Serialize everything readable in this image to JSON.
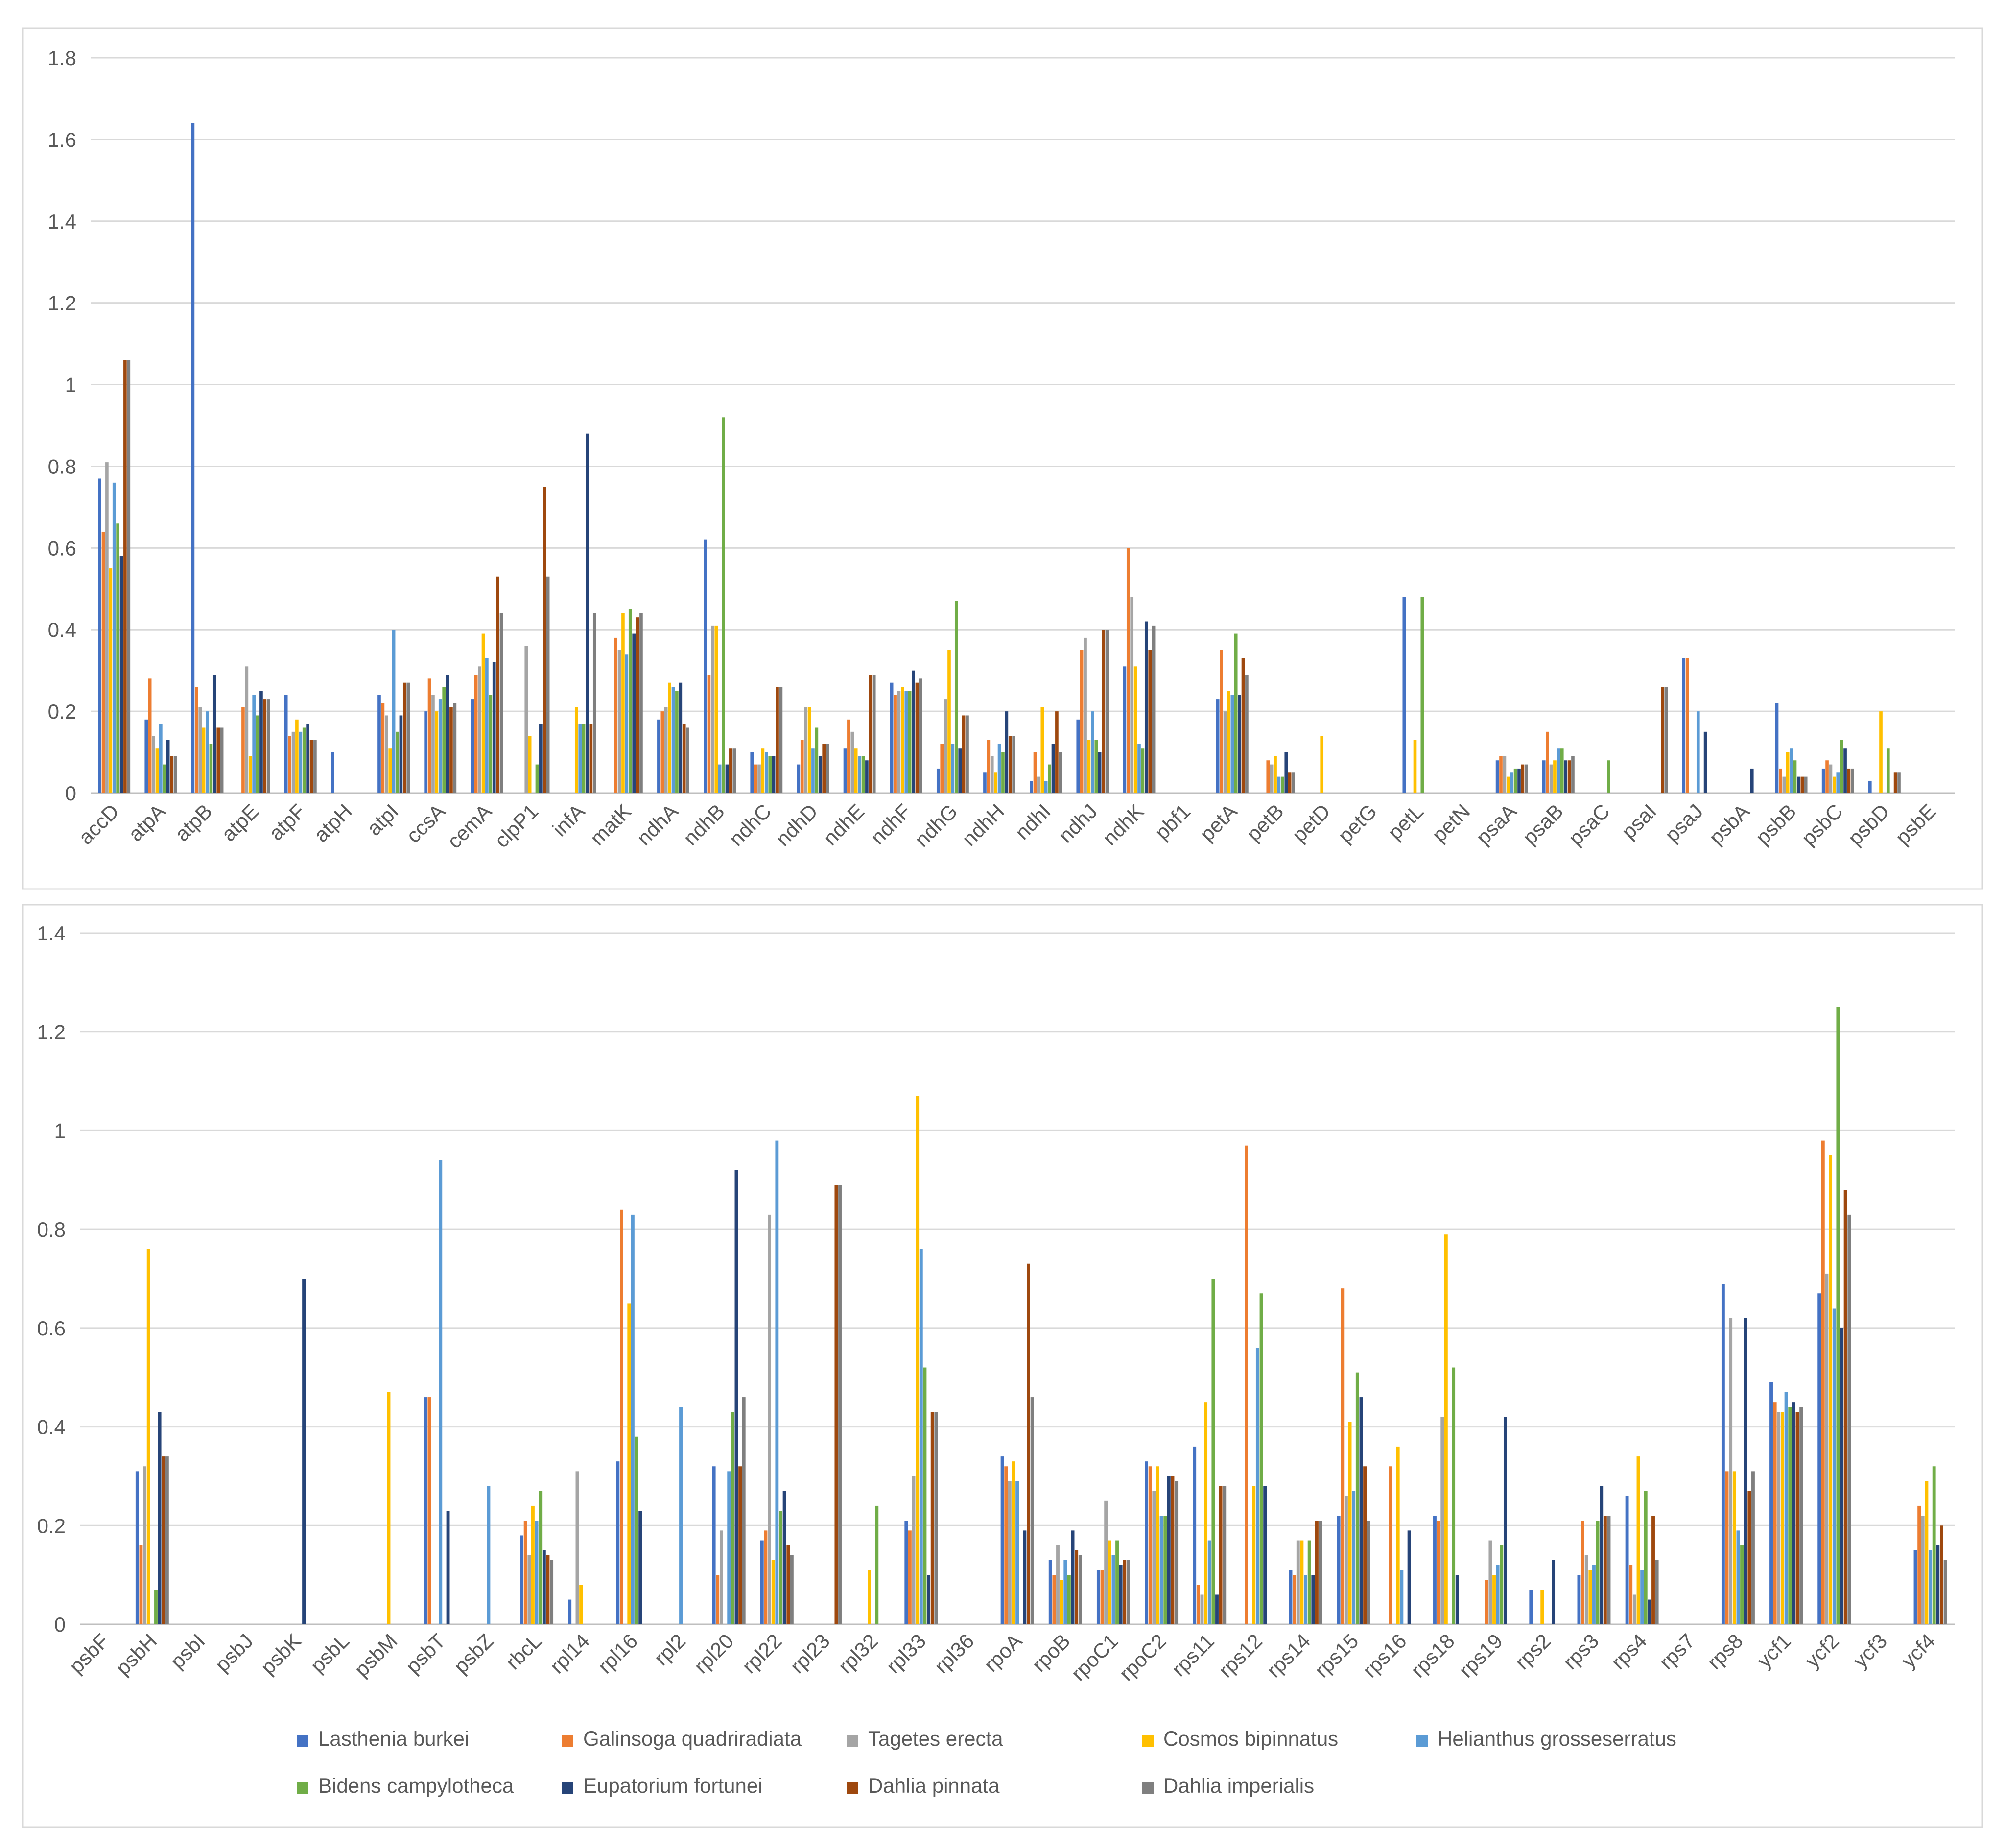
{
  "chart_data": [
    {
      "type": "bar",
      "ylim": [
        0,
        1.8
      ],
      "yticks": [
        0,
        0.2,
        0.4,
        0.6,
        0.8,
        1,
        1.2,
        1.4,
        1.6,
        1.8
      ],
      "ytick_labels": [
        "0",
        "0.2",
        "0.4",
        "0.6",
        "0.8",
        "1",
        "1.2",
        "1.4",
        "1.6",
        "1.8"
      ],
      "categories": [
        "accD",
        "atpA",
        "atpB",
        "atpE",
        "atpF",
        "atpH",
        "atpI",
        "ccsA",
        "cemA",
        "clpP1",
        "infA",
        "matK",
        "ndhA",
        "ndhB",
        "ndhC",
        "ndhD",
        "ndhE",
        "ndhF",
        "ndhG",
        "ndhH",
        "ndhI",
        "ndhJ",
        "ndhK",
        "pbf1",
        "petA",
        "petB",
        "petD",
        "petG",
        "petL",
        "petN",
        "psaA",
        "psaB",
        "psaC",
        "psaI",
        "psaJ",
        "psbA",
        "psbB",
        "psbC",
        "psbD",
        "psbE"
      ],
      "series": [
        {
          "name": "Lasthenia burkei",
          "values": [
            0.77,
            0.18,
            1.64,
            0,
            0.24,
            0.1,
            0.24,
            0.2,
            0.23,
            0,
            0,
            0,
            0.18,
            0.62,
            0.1,
            0.07,
            0.11,
            0.27,
            0.06,
            0.05,
            0.03,
            0.18,
            0.31,
            0,
            0.23,
            0,
            0,
            0,
            0.48,
            0,
            0.08,
            0.08,
            0,
            0,
            0.33,
            0,
            0.22,
            0.06,
            0.03,
            0
          ]
        },
        {
          "name": "Galinsoga quadriradiata",
          "values": [
            0.64,
            0.28,
            0.26,
            0.21,
            0.14,
            0,
            0.22,
            0.28,
            0.29,
            0,
            0,
            0.38,
            0.2,
            0.29,
            0.07,
            0.13,
            0.18,
            0.24,
            0.12,
            0.13,
            0.1,
            0.35,
            0.6,
            0,
            0.35,
            0.08,
            0,
            0,
            0,
            0,
            0.09,
            0.15,
            0,
            0,
            0.33,
            0,
            0.06,
            0.08,
            0,
            0
          ]
        },
        {
          "name": "Tagetes erecta",
          "values": [
            0.81,
            0.14,
            0.21,
            0.31,
            0.15,
            0,
            0.19,
            0.24,
            0.31,
            0.36,
            0,
            0.35,
            0.21,
            0.41,
            0.07,
            0.21,
            0.15,
            0.25,
            0.23,
            0.09,
            0.04,
            0.38,
            0.48,
            0,
            0.2,
            0.07,
            0,
            0,
            0,
            0,
            0.09,
            0.07,
            0,
            0,
            0,
            0,
            0.04,
            0.07,
            0,
            0
          ]
        },
        {
          "name": "Cosmos bipinnatus",
          "values": [
            0.55,
            0.11,
            0.16,
            0.09,
            0.18,
            0,
            0.11,
            0.2,
            0.39,
            0.14,
            0.21,
            0.44,
            0.27,
            0.41,
            0.11,
            0.21,
            0.11,
            0.26,
            0.35,
            0.05,
            0.21,
            0.13,
            0.31,
            0,
            0.25,
            0.09,
            0.14,
            0,
            0.13,
            0,
            0.04,
            0.08,
            0,
            0,
            0,
            0,
            0.1,
            0.04,
            0.2,
            0
          ]
        },
        {
          "name": "Helianthus grosseserratus",
          "values": [
            0.76,
            0.17,
            0.2,
            0.24,
            0.15,
            0,
            0.4,
            0.23,
            0.33,
            0,
            0.17,
            0.34,
            0.26,
            0.07,
            0.1,
            0.11,
            0.09,
            0.25,
            0.12,
            0.12,
            0.03,
            0.2,
            0.12,
            0,
            0.24,
            0.04,
            0,
            0,
            0,
            0,
            0.05,
            0.11,
            0,
            0,
            0.2,
            0,
            0.11,
            0.05,
            0,
            0
          ]
        },
        {
          "name": "Bidens campylotheca",
          "values": [
            0.66,
            0.07,
            0.12,
            0.19,
            0.16,
            0,
            0.15,
            0.26,
            0.24,
            0.07,
            0.17,
            0.45,
            0.25,
            0.92,
            0.09,
            0.16,
            0.09,
            0.25,
            0.47,
            0.1,
            0.07,
            0.13,
            0.11,
            0,
            0.39,
            0.04,
            0,
            0,
            0.48,
            0,
            0.06,
            0.11,
            0.08,
            0,
            0,
            0,
            0.08,
            0.13,
            0.11,
            0
          ]
        },
        {
          "name": "Eupatorium fortunei",
          "values": [
            0.58,
            0.13,
            0.29,
            0.25,
            0.17,
            0,
            0.19,
            0.29,
            0.32,
            0.17,
            0.88,
            0.39,
            0.27,
            0.07,
            0.09,
            0.09,
            0.08,
            0.3,
            0.11,
            0.2,
            0.12,
            0.1,
            0.42,
            0,
            0.24,
            0.1,
            0,
            0,
            0,
            0,
            0.06,
            0.08,
            0,
            0,
            0.15,
            0.06,
            0.04,
            0.11,
            0,
            0
          ]
        },
        {
          "name": "Dahlia pinnata",
          "values": [
            1.06,
            0.09,
            0.16,
            0.23,
            0.13,
            0,
            0.27,
            0.21,
            0.53,
            0.75,
            0.17,
            0.43,
            0.17,
            0.11,
            0.26,
            0.12,
            0.29,
            0.27,
            0.19,
            0.14,
            0.2,
            0.4,
            0.35,
            0,
            0.33,
            0.05,
            0,
            0,
            0,
            0,
            0.07,
            0.08,
            0,
            0.26,
            0,
            0,
            0.04,
            0.06,
            0.05,
            0
          ]
        },
        {
          "name": "Dahlia imperialis",
          "values": [
            1.06,
            0.09,
            0.16,
            0.23,
            0.13,
            0,
            0.27,
            0.22,
            0.44,
            0.53,
            0.44,
            0.44,
            0.16,
            0.11,
            0.26,
            0.12,
            0.29,
            0.28,
            0.19,
            0.14,
            0.1,
            0.4,
            0.41,
            0,
            0.29,
            0.05,
            0,
            0,
            0,
            0,
            0.07,
            0.09,
            0,
            0.26,
            0,
            0,
            0.04,
            0.06,
            0.05,
            0
          ]
        }
      ]
    },
    {
      "type": "bar",
      "ylim": [
        0,
        1.4
      ],
      "yticks": [
        0,
        0.2,
        0.4,
        0.6,
        0.8,
        1,
        1.2,
        1.4
      ],
      "ytick_labels": [
        "0",
        "0.2",
        "0.4",
        "0.6",
        "0.8",
        "1",
        "1.2",
        "1.4"
      ],
      "categories": [
        "psbF",
        "psbH",
        "psbI",
        "psbJ",
        "psbK",
        "psbL",
        "psbM",
        "psbT",
        "psbZ",
        "rbcL",
        "rpl14",
        "rpl16",
        "rpl2",
        "rpl20",
        "rpl22",
        "rpl23",
        "rpl32",
        "rpl33",
        "rpl36",
        "rpoA",
        "rpoB",
        "rpoC1",
        "rpoC2",
        "rps11",
        "rps12",
        "rps14",
        "rps15",
        "rps16",
        "rps18",
        "rps19",
        "rps2",
        "rps3",
        "rps4",
        "rps7",
        "rps8",
        "ycf1",
        "ycf2",
        "ycf3",
        "ycf4"
      ],
      "series": [
        {
          "name": "Lasthenia burkei",
          "values": [
            0,
            0.31,
            0,
            0,
            0,
            0,
            0,
            0.46,
            0,
            0.18,
            0.05,
            0.33,
            0,
            0.32,
            0.17,
            0,
            0,
            0.21,
            0,
            0.34,
            0.13,
            0.11,
            0.33,
            0.36,
            0,
            0.11,
            0.22,
            0,
            0.22,
            0,
            0.07,
            0.1,
            0.26,
            0,
            0.69,
            0.49,
            0.67,
            0,
            0.15
          ]
        },
        {
          "name": "Galinsoga quadriradiata",
          "values": [
            0,
            0.16,
            0,
            0,
            0,
            0,
            0,
            0.46,
            0,
            0.21,
            0,
            0.84,
            0,
            0.1,
            0.19,
            0,
            0,
            0.19,
            0,
            0.32,
            0.1,
            0.11,
            0.32,
            0.08,
            0.97,
            0.1,
            0.68,
            0.32,
            0.21,
            0.09,
            0,
            0.21,
            0.12,
            0,
            0.31,
            0.45,
            0.98,
            0,
            0.24
          ]
        },
        {
          "name": "Tagetes erecta",
          "values": [
            0,
            0.32,
            0,
            0,
            0,
            0,
            0,
            0,
            0,
            0.14,
            0.31,
            0,
            0,
            0.19,
            0.83,
            0,
            0,
            0.3,
            0,
            0.29,
            0.16,
            0.25,
            0.27,
            0.06,
            0,
            0.17,
            0.26,
            0,
            0.42,
            0.17,
            0,
            0.14,
            0.06,
            0,
            0.62,
            0.43,
            0.71,
            0,
            0.22
          ]
        },
        {
          "name": "Cosmos bipinnatus",
          "values": [
            0,
            0.76,
            0,
            0,
            0,
            0,
            0.47,
            0,
            0,
            0.24,
            0.08,
            0.65,
            0,
            0,
            0.13,
            0,
            0.11,
            1.07,
            0,
            0.33,
            0.09,
            0.17,
            0.32,
            0.45,
            0.28,
            0.17,
            0.41,
            0.36,
            0.79,
            0.1,
            0.07,
            0.11,
            0.34,
            0,
            0.31,
            0.43,
            0.95,
            0,
            0.29
          ]
        },
        {
          "name": "Helianthus grosseserratus",
          "values": [
            0,
            0,
            0,
            0,
            0,
            0,
            0,
            0.94,
            0.28,
            0.21,
            0,
            0.83,
            0.44,
            0.31,
            0.98,
            0,
            0,
            0.76,
            0,
            0.29,
            0.13,
            0.14,
            0.22,
            0.17,
            0.56,
            0.1,
            0.27,
            0.11,
            0,
            0.12,
            0,
            0.12,
            0.11,
            0,
            0.19,
            0.47,
            0.64,
            0,
            0.15
          ]
        },
        {
          "name": "Bidens campylotheca",
          "values": [
            0,
            0.07,
            0,
            0,
            0,
            0,
            0,
            0,
            0,
            0.27,
            0,
            0.38,
            0,
            0.43,
            0.23,
            0,
            0.24,
            0.52,
            0,
            0,
            0.1,
            0.17,
            0.22,
            0.7,
            0.67,
            0.17,
            0.51,
            0,
            0.52,
            0.16,
            0,
            0.21,
            0.27,
            0,
            0.16,
            0.44,
            1.25,
            0,
            0.32
          ]
        },
        {
          "name": "Eupatorium fortunei",
          "values": [
            0,
            0.43,
            0,
            0,
            0.7,
            0,
            0,
            0.23,
            0,
            0.15,
            0,
            0.23,
            0,
            0.92,
            0.27,
            0,
            0,
            0.1,
            0,
            0.19,
            0.19,
            0.12,
            0.3,
            0.06,
            0.28,
            0.1,
            0.46,
            0.19,
            0.1,
            0.42,
            0.13,
            0.28,
            0.05,
            0,
            0.62,
            0.45,
            0.6,
            0,
            0.16
          ]
        },
        {
          "name": "Dahlia pinnata",
          "values": [
            0,
            0.34,
            0,
            0,
            0,
            0,
            0,
            0,
            0,
            0.14,
            0,
            0,
            0,
            0.32,
            0.16,
            0.89,
            0,
            0.43,
            0,
            0.73,
            0.15,
            0.13,
            0.3,
            0.28,
            0,
            0.21,
            0.32,
            0,
            0,
            0,
            0,
            0.22,
            0.22,
            0,
            0.27,
            0.43,
            0.88,
            0,
            0.2
          ]
        },
        {
          "name": "Dahlia imperialis",
          "values": [
            0,
            0.34,
            0,
            0,
            0,
            0,
            0,
            0,
            0,
            0.13,
            0,
            0,
            0,
            0.46,
            0.14,
            0.89,
            0,
            0.43,
            0,
            0.46,
            0.14,
            0.13,
            0.29,
            0.28,
            0,
            0.21,
            0.21,
            0,
            0,
            0,
            0,
            0.22,
            0.13,
            0,
            0.31,
            0.44,
            0.83,
            0,
            0.13
          ]
        }
      ]
    }
  ],
  "legend": {
    "colors": [
      "#4472C4",
      "#ED7D31",
      "#A5A5A5",
      "#FFC000",
      "#5B9BD5",
      "#70AD47",
      "#264478",
      "#9E480E",
      "#7F7F7F"
    ]
  }
}
